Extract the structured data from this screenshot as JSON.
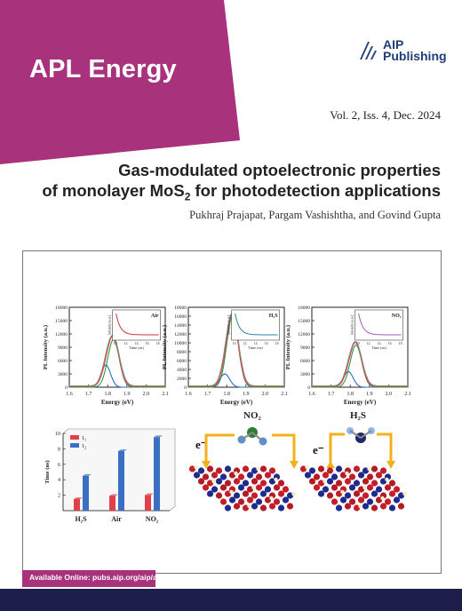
{
  "cover": {
    "journal": "APL Energy",
    "publisher_line1": "AIP",
    "publisher_line2": "Publishing",
    "issue": "Vol. 2, Iss. 4, Dec. 2024",
    "title_line1": "Gas-modulated optoelectronic properties",
    "title_line2_pre": "of monolayer MoS",
    "title_line2_sub": "2",
    "title_line2_post": " for photodetection applications",
    "authors": "Pukhraj Prajapat, Pargam Vashishtha, and Govind Gupta",
    "available": "Available Online: pubs.aip.org/aip/ape",
    "colors": {
      "magenta": "#a8327c",
      "navy": "#1d1f4a",
      "aip_blue": "#1f3d7a"
    }
  },
  "chart_data": [
    {
      "type": "line",
      "gas": "Air",
      "ylabel": "PL Intensity (a.u.)",
      "xlabel": "Energy (eV)",
      "xlim": [
        1.6,
        2.1
      ],
      "ylim": [
        0,
        18000
      ],
      "xticks": [
        "1.6",
        "1.7",
        "1.8",
        "1.9",
        "2.0",
        "2.1"
      ],
      "yticks": [
        "0",
        "3000",
        "6000",
        "9000",
        "12000",
        "15000",
        "18000"
      ],
      "peaks": {
        "total": 11500,
        "a_exciton": 10700,
        "trion": 5000
      },
      "inset_ylabel": "Intensity (a.u.)",
      "inset_xlabel": "Time (ns)",
      "inset_xticks": [
        "10",
        "12",
        "14",
        "16",
        "18"
      ]
    },
    {
      "type": "line",
      "gas": "H₂S",
      "ylabel": "PL Intensity (a.u.)",
      "xlabel": "Energy (eV)",
      "xlim": [
        1.6,
        2.1
      ],
      "ylim": [
        0,
        18000
      ],
      "xticks": [
        "1.6",
        "1.7",
        "1.8",
        "1.9",
        "2.0",
        "2.1"
      ],
      "yticks": [
        "0",
        "2000",
        "4000",
        "6000",
        "8000",
        "10000",
        "12000",
        "14000",
        "16000",
        "18000"
      ],
      "peaks": {
        "total": 16800,
        "a_exciton": 16000,
        "trion": 3000
      },
      "inset_ylabel": "Intensity (a.u.)",
      "inset_xlabel": "Time (ns)",
      "inset_xticks": [
        "10",
        "12",
        "14",
        "16",
        "18"
      ]
    },
    {
      "type": "line",
      "gas": "NO₂",
      "ylabel": "PL Intensity (a.u.)",
      "xlabel": "Energy (eV)",
      "xlim": [
        1.6,
        2.1
      ],
      "ylim": [
        0,
        18000
      ],
      "xticks": [
        "1.6",
        "1.7",
        "1.8",
        "1.9",
        "2.0",
        "2.1"
      ],
      "yticks": [
        "0",
        "3000",
        "6000",
        "9000",
        "12000",
        "15000",
        "18000"
      ],
      "peaks": {
        "total": 10500,
        "a_exciton": 9500,
        "trion": 3500
      },
      "inset_ylabel": "Intensity (a.u.)",
      "inset_xlabel": "Time (ns)",
      "inset_xticks": [
        "10",
        "12",
        "14",
        "16",
        "18"
      ]
    },
    {
      "type": "bar",
      "categories": [
        "H₂S",
        "Air",
        "NO₂"
      ],
      "ylabel": "Time (ns)",
      "ylim": [
        0,
        10
      ],
      "yticks": [
        "2",
        "4",
        "6",
        "8",
        "10"
      ],
      "series": [
        {
          "name": "τ₁",
          "values": [
            1.5,
            1.9,
            2.0
          ],
          "color": "#e0404a"
        },
        {
          "name": "τ₂",
          "values": [
            4.5,
            7.7,
            9.5
          ],
          "color": "#3a6fc4"
        }
      ]
    }
  ],
  "schematic": {
    "left_gas": "NO₂",
    "right_gas": "H₂S",
    "electron": "e⁻"
  }
}
